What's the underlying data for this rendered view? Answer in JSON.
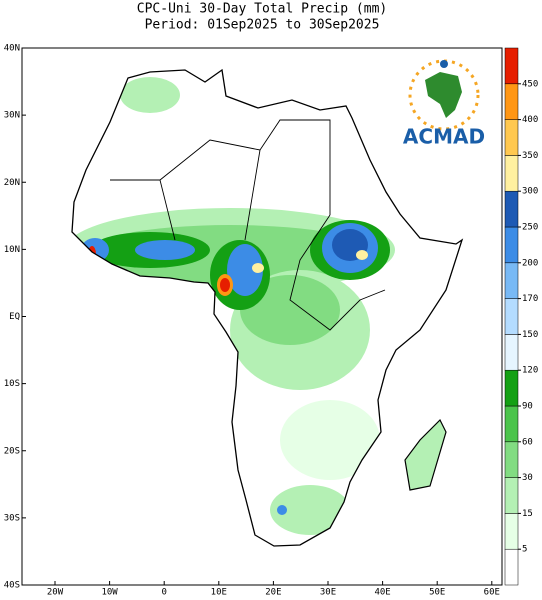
{
  "map": {
    "title": "CPC-Uni 30-Day Total Precip (mm)",
    "subtitle": "Period: 01Sep2025 to 30Sep2025",
    "lat_labels": [
      "40N",
      "30N",
      "20N",
      "10N",
      "EQ",
      "10S",
      "20S",
      "30S",
      "40S"
    ],
    "lon_labels": [
      "20W",
      "10W",
      "0",
      "10E",
      "20E",
      "30E",
      "40E",
      "50E",
      "60E"
    ],
    "logo_text": "ACMAD"
  },
  "colorbar": {
    "levels": [
      5,
      15,
      30,
      60,
      90,
      120,
      150,
      170,
      200,
      250,
      300,
      350,
      400,
      450
    ],
    "colors": [
      "#ffffff",
      "#e6ffe6",
      "#b4f0b4",
      "#82dc82",
      "#4cc44c",
      "#14a014",
      "#e6f5ff",
      "#b4dcff",
      "#78b9f5",
      "#3c8ce6",
      "#1e5ab4",
      "#fff0a0",
      "#ffc850",
      "#ff9614",
      "#e61e00"
    ]
  }
}
